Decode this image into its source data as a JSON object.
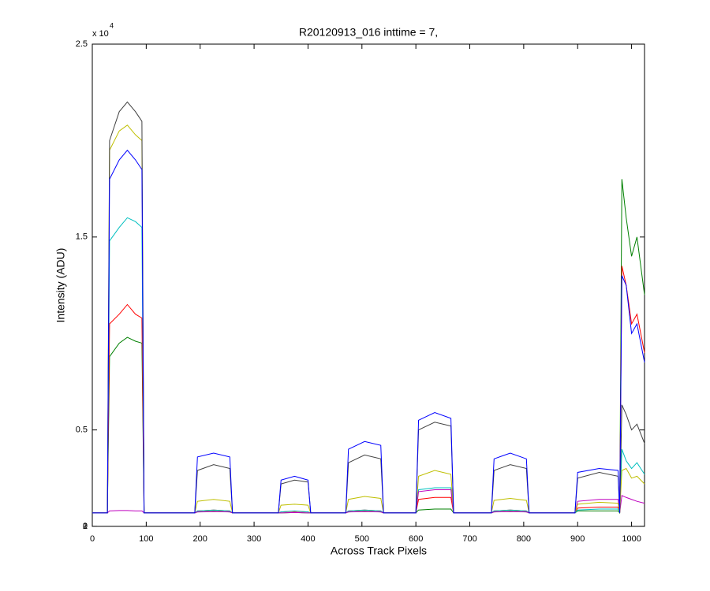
{
  "chart_data": {
    "type": "line",
    "title": "R20120913_016 inttime = 7,",
    "x_label": "Across Track Pixels",
    "y_label": "Intensity (ADU)",
    "y_multiplier": "x 10",
    "y_multiplier_exp": "4",
    "xlim": [
      0,
      1024
    ],
    "ylim": [
      0,
      25000
    ],
    "xticks": [
      0,
      100,
      200,
      300,
      400,
      500,
      600,
      700,
      800,
      900,
      1000
    ],
    "yticks": [
      0,
      {
        "value": 5000,
        "label": "0.5"
      },
      1,
      {
        "value": 15000,
        "label": "1.5"
      },
      2,
      {
        "value": 25000,
        "label": "2.5"
      }
    ],
    "grid": false,
    "x": [
      0,
      28,
      32,
      50,
      65,
      80,
      92,
      96,
      190,
      195,
      225,
      255,
      260,
      345,
      350,
      375,
      400,
      405,
      470,
      475,
      505,
      535,
      540,
      600,
      605,
      635,
      665,
      670,
      740,
      745,
      775,
      805,
      810,
      895,
      900,
      940,
      975,
      978,
      982,
      990,
      1000,
      1010,
      1024
    ],
    "series": [
      {
        "color": "#008000",
        "values": [
          700,
          700,
          8800,
          9500,
          9800,
          9600,
          9500,
          700,
          700,
          750,
          780,
          750,
          700,
          700,
          700,
          720,
          700,
          700,
          700,
          750,
          780,
          750,
          700,
          700,
          850,
          900,
          900,
          700,
          700,
          750,
          780,
          750,
          700,
          700,
          800,
          800,
          800,
          700,
          18000,
          16000,
          14000,
          15000,
          12000
        ]
      },
      {
        "color": "#ff0000",
        "values": [
          700,
          700,
          10500,
          11000,
          11500,
          11000,
          10800,
          700,
          700,
          800,
          850,
          800,
          700,
          700,
          750,
          780,
          750,
          700,
          700,
          800,
          850,
          800,
          700,
          700,
          1400,
          1500,
          1500,
          700,
          700,
          800,
          850,
          800,
          700,
          700,
          950,
          1000,
          1000,
          700,
          13500,
          12500,
          10500,
          11000,
          9000
        ]
      },
      {
        "color": "#00bfbf",
        "values": [
          700,
          700,
          14800,
          15500,
          16000,
          15800,
          15500,
          700,
          700,
          800,
          850,
          800,
          700,
          700,
          750,
          800,
          750,
          700,
          700,
          800,
          850,
          800,
          700,
          700,
          1900,
          2000,
          2000,
          700,
          700,
          800,
          850,
          800,
          700,
          700,
          850,
          900,
          900,
          700,
          4000,
          3400,
          3000,
          3300,
          2700
        ]
      },
      {
        "color": "#bf00bf",
        "values": [
          700,
          700,
          800,
          820,
          820,
          800,
          800,
          700,
          700,
          750,
          760,
          750,
          700,
          700,
          700,
          720,
          700,
          700,
          700,
          750,
          760,
          750,
          700,
          700,
          1800,
          1900,
          1900,
          700,
          700,
          750,
          760,
          750,
          700,
          700,
          1300,
          1400,
          1400,
          700,
          1600,
          1500,
          1400,
          1300,
          1200
        ]
      },
      {
        "color": "#bfbf00",
        "values": [
          700,
          700,
          19500,
          20500,
          20800,
          20300,
          20000,
          700,
          700,
          1300,
          1400,
          1300,
          700,
          700,
          1100,
          1150,
          1100,
          700,
          700,
          1400,
          1550,
          1450,
          700,
          700,
          2600,
          2900,
          2700,
          700,
          700,
          1350,
          1450,
          1350,
          700,
          700,
          1150,
          1250,
          1200,
          700,
          2900,
          3000,
          2500,
          2600,
          2200
        ]
      },
      {
        "color": "#404040",
        "values": [
          700,
          700,
          20000,
          21500,
          22000,
          21500,
          21000,
          700,
          700,
          2900,
          3200,
          3000,
          700,
          700,
          2200,
          2400,
          2300,
          700,
          700,
          3300,
          3700,
          3500,
          700,
          700,
          5000,
          5400,
          5200,
          700,
          700,
          2900,
          3200,
          3000,
          700,
          700,
          2500,
          2800,
          2600,
          700,
          6300,
          5800,
          5000,
          5300,
          4300
        ]
      },
      {
        "color": "#0000ff",
        "values": [
          700,
          700,
          18000,
          19000,
          19500,
          19000,
          18500,
          700,
          700,
          3600,
          3800,
          3600,
          700,
          700,
          2400,
          2600,
          2400,
          700,
          700,
          4000,
          4400,
          4200,
          700,
          700,
          5500,
          5900,
          5600,
          700,
          700,
          3500,
          3800,
          3500,
          700,
          700,
          2800,
          3000,
          2900,
          700,
          13000,
          12500,
          10000,
          10500,
          8500
        ]
      }
    ]
  }
}
